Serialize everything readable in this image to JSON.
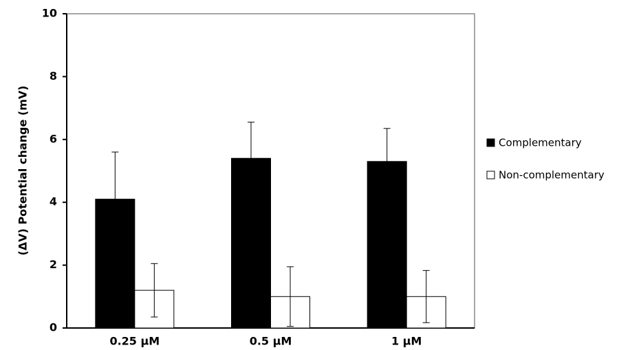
{
  "chart_data": {
    "type": "bar",
    "y_label": "(ΔV) Potential change (mV)",
    "categories": [
      "0.25 µM",
      "0.5 µM",
      "1 µM"
    ],
    "series": [
      {
        "name": "Complementary",
        "color": "#000000",
        "values": [
          4.1,
          5.4,
          5.3
        ],
        "errors": [
          1.5,
          1.15,
          1.05
        ]
      },
      {
        "name": "Non-complementary",
        "color": "#ffffff",
        "values": [
          1.2,
          1.0,
          1.0
        ],
        "errors": [
          0.85,
          0.95,
          0.83
        ]
      }
    ],
    "ylim": [
      0,
      10
    ],
    "yticks": [
      0,
      2,
      4,
      6,
      8,
      10
    ],
    "legend": "right"
  }
}
